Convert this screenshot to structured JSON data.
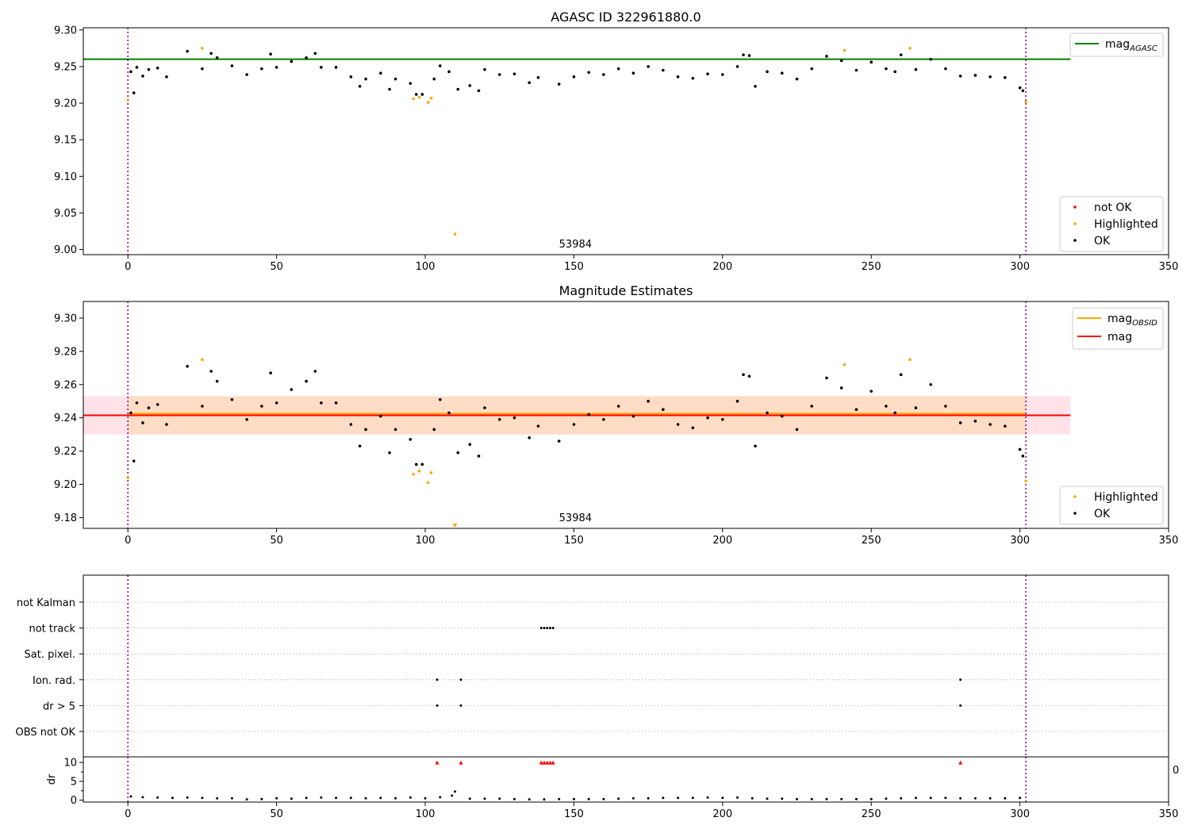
{
  "chart_data": [
    {
      "type": "scatter",
      "title": "AGASC ID 322961880.0",
      "xlim": [
        -15,
        350
      ],
      "ylim": [
        8.993,
        9.303
      ],
      "xticks": [
        0,
        50,
        100,
        150,
        200,
        250,
        300,
        350
      ],
      "yticks": [
        9.0,
        9.05,
        9.1,
        9.15,
        9.2,
        9.25,
        9.3
      ],
      "ytick_labels": [
        "9.00",
        "9.05",
        "9.10",
        "9.15",
        "9.20",
        "9.25",
        "9.30"
      ],
      "annotation": "53984",
      "vlines_x": [
        0,
        302
      ],
      "hline": {
        "name": "mag",
        "sub": "AGASC",
        "y": 9.26,
        "x_range": [
          -15,
          317
        ],
        "color": "#008000"
      },
      "legend_lines": [
        {
          "name": "mag",
          "sub": "AGASC",
          "color": "#008000"
        }
      ],
      "legend_points": [
        {
          "name": "not OK",
          "color": "#ff0000"
        },
        {
          "name": "Highlighted",
          "color": "#ffa500"
        },
        {
          "name": "OK",
          "color": "#000000"
        }
      ],
      "series": [
        {
          "name": "Highlighted",
          "color": "#ffa500",
          "x": [
            0,
            25,
            96,
            98,
            101,
            102,
            110,
            241,
            263,
            302
          ],
          "y": [
            9.204,
            9.275,
            9.206,
            9.208,
            9.201,
            9.207,
            9.021,
            9.272,
            9.275,
            9.202
          ]
        },
        {
          "name": "OK",
          "color": "#000000",
          "x": [
            1,
            2,
            3,
            5,
            7,
            10,
            13,
            20,
            25,
            28,
            30,
            35,
            40,
            45,
            48,
            50,
            55,
            60,
            63,
            65,
            70,
            75,
            78,
            80,
            85,
            88,
            90,
            95,
            97,
            99,
            103,
            105,
            108,
            111,
            115,
            118,
            120,
            125,
            130,
            135,
            138,
            145,
            150,
            155,
            160,
            165,
            170,
            175,
            180,
            185,
            190,
            195,
            200,
            205,
            207,
            209,
            211,
            215,
            220,
            225,
            230,
            235,
            240,
            245,
            250,
            255,
            258,
            260,
            265,
            270,
            275,
            280,
            285,
            290,
            295,
            300,
            301
          ],
          "y": [
            9.243,
            9.214,
            9.249,
            9.237,
            9.246,
            9.248,
            9.236,
            9.271,
            9.247,
            9.268,
            9.262,
            9.251,
            9.239,
            9.247,
            9.267,
            9.249,
            9.257,
            9.262,
            9.268,
            9.249,
            9.249,
            9.236,
            9.223,
            9.233,
            9.241,
            9.219,
            9.233,
            9.227,
            9.212,
            9.212,
            9.233,
            9.251,
            9.243,
            9.219,
            9.224,
            9.217,
            9.246,
            9.239,
            9.24,
            9.228,
            9.235,
            9.226,
            9.236,
            9.242,
            9.239,
            9.247,
            9.241,
            9.25,
            9.245,
            9.236,
            9.234,
            9.24,
            9.239,
            9.25,
            9.266,
            9.265,
            9.223,
            9.243,
            9.241,
            9.233,
            9.247,
            9.264,
            9.258,
            9.245,
            9.256,
            9.247,
            9.243,
            9.266,
            9.246,
            9.26,
            9.247,
            9.237,
            9.238,
            9.236,
            9.235,
            9.221,
            9.217
          ]
        }
      ]
    },
    {
      "type": "scatter",
      "title": "Magnitude Estimates",
      "xlim": [
        -15,
        350
      ],
      "ylim": [
        9.1735,
        9.31
      ],
      "xticks": [
        0,
        50,
        100,
        150,
        200,
        250,
        300,
        350
      ],
      "yticks": [
        9.18,
        9.2,
        9.22,
        9.24,
        9.26,
        9.28,
        9.3
      ],
      "ytick_labels": [
        "9.18",
        "9.20",
        "9.22",
        "9.24",
        "9.26",
        "9.28",
        "9.30"
      ],
      "annotation": "53984",
      "vlines_x": [
        0,
        302
      ],
      "bands": [
        {
          "y0": 9.23,
          "y1": 9.253,
          "x_range": [
            -15,
            317
          ],
          "color": "#ffc0cb"
        },
        {
          "y0": 9.23,
          "y1": 9.253,
          "x_range": [
            0,
            302
          ],
          "color": "#ffdab9"
        }
      ],
      "hlines": [
        {
          "name": "mag",
          "sub": "OBSID",
          "y": 9.2425,
          "x_range": [
            0,
            302
          ],
          "color": "#ffa500"
        },
        {
          "name": "mag",
          "y": 9.2415,
          "x_range": [
            -15,
            317
          ],
          "color": "#ff0000"
        }
      ],
      "legend_lines": [
        {
          "name": "mag",
          "sub": "OBSID",
          "color": "#ffa500"
        },
        {
          "name": "mag",
          "color": "#ff0000"
        }
      ],
      "legend_points": [
        {
          "name": "Highlighted",
          "color": "#ffa500"
        },
        {
          "name": "OK",
          "color": "#000000"
        }
      ],
      "clipped_markers": [
        {
          "x": 110,
          "color": "#ffa500"
        }
      ],
      "series": [
        {
          "name": "Highlighted",
          "color": "#ffa500",
          "x": [
            0,
            25,
            96,
            98,
            101,
            102,
            241,
            263,
            302
          ],
          "y": [
            9.204,
            9.275,
            9.206,
            9.208,
            9.201,
            9.207,
            9.272,
            9.275,
            9.202
          ]
        },
        {
          "name": "OK",
          "color": "#000000",
          "x": [
            1,
            2,
            3,
            5,
            7,
            10,
            13,
            20,
            25,
            28,
            30,
            35,
            40,
            45,
            48,
            50,
            55,
            60,
            63,
            65,
            70,
            75,
            78,
            80,
            85,
            88,
            90,
            95,
            97,
            99,
            103,
            105,
            108,
            111,
            115,
            118,
            120,
            125,
            130,
            135,
            138,
            145,
            150,
            155,
            160,
            165,
            170,
            175,
            180,
            185,
            190,
            195,
            200,
            205,
            207,
            209,
            211,
            215,
            220,
            225,
            230,
            235,
            240,
            245,
            250,
            255,
            258,
            260,
            265,
            270,
            275,
            280,
            285,
            290,
            295,
            300,
            301
          ],
          "y": [
            9.243,
            9.214,
            9.249,
            9.237,
            9.246,
            9.248,
            9.236,
            9.271,
            9.247,
            9.268,
            9.262,
            9.251,
            9.239,
            9.247,
            9.267,
            9.249,
            9.257,
            9.262,
            9.268,
            9.249,
            9.249,
            9.236,
            9.223,
            9.233,
            9.241,
            9.219,
            9.233,
            9.227,
            9.212,
            9.212,
            9.233,
            9.251,
            9.243,
            9.219,
            9.224,
            9.217,
            9.246,
            9.239,
            9.24,
            9.228,
            9.235,
            9.226,
            9.236,
            9.242,
            9.239,
            9.247,
            9.241,
            9.25,
            9.245,
            9.236,
            9.234,
            9.24,
            9.239,
            9.25,
            9.266,
            9.265,
            9.223,
            9.243,
            9.241,
            9.233,
            9.247,
            9.264,
            9.258,
            9.245,
            9.256,
            9.247,
            9.243,
            9.266,
            9.246,
            9.26,
            9.247,
            9.237,
            9.238,
            9.236,
            9.235,
            9.221,
            9.217
          ]
        }
      ]
    },
    {
      "type": "scatter",
      "title": "",
      "xlim": [
        -15,
        350
      ],
      "xticks": [
        0,
        50,
        100,
        150,
        200,
        250,
        300,
        350
      ],
      "vlines_x": [
        0,
        302
      ],
      "flag_rows": [
        "OBS not OK",
        "dr > 5",
        "Ion. rad.",
        "Sat. pixel.",
        "not track",
        "not Kalman"
      ],
      "flags": [
        {
          "row": "not track",
          "x": [
            139,
            140,
            141,
            142,
            143
          ]
        },
        {
          "row": "Ion. rad.",
          "x": [
            104,
            112,
            280
          ]
        },
        {
          "row": "dr > 5",
          "x": [
            104,
            112,
            280
          ]
        }
      ]
    },
    {
      "type": "scatter",
      "title": "",
      "xlim": [
        -15,
        350
      ],
      "ylim": [
        -0.5,
        11.5
      ],
      "xticks": [
        0,
        50,
        100,
        150,
        200,
        250,
        300,
        350
      ],
      "yticks": [
        0,
        5,
        10
      ],
      "ytick_labels": [
        "0",
        "5",
        "10"
      ],
      "ylabel": "dr",
      "vlines_x": [
        0,
        302
      ],
      "right_label": "0",
      "series": [
        {
          "name": "dr",
          "color": "#000000",
          "x": [
            1,
            5,
            10,
            15,
            20,
            25,
            30,
            35,
            40,
            45,
            50,
            55,
            60,
            65,
            70,
            75,
            80,
            85,
            90,
            95,
            100,
            105,
            109,
            110,
            115,
            120,
            125,
            130,
            135,
            140,
            145,
            150,
            155,
            160,
            165,
            170,
            175,
            180,
            185,
            190,
            195,
            200,
            205,
            210,
            215,
            220,
            225,
            230,
            235,
            240,
            245,
            250,
            255,
            260,
            265,
            270,
            275,
            280,
            285,
            290,
            295,
            300
          ],
          "y": [
            1.0,
            0.8,
            0.7,
            0.6,
            0.7,
            0.6,
            0.5,
            0.5,
            0.2,
            0.3,
            0.5,
            0.4,
            0.6,
            0.7,
            0.6,
            0.6,
            0.5,
            0.6,
            0.5,
            0.7,
            0.5,
            0.8,
            1.2,
            2.3,
            0.4,
            0.4,
            0.4,
            0.3,
            0.2,
            0.2,
            0.3,
            0.3,
            0.3,
            0.3,
            0.4,
            0.5,
            0.5,
            0.6,
            0.6,
            0.6,
            0.7,
            0.6,
            0.7,
            0.5,
            0.4,
            0.4,
            0.3,
            0.3,
            0.3,
            0.3,
            0.3,
            0.3,
            0.4,
            0.5,
            0.6,
            0.6,
            0.6,
            0.5,
            0.5,
            0.5,
            0.5,
            0.6
          ]
        },
        {
          "name": "clipped",
          "color": "#ff0000",
          "x": [
            104,
            112,
            139,
            140,
            141,
            142,
            143,
            280
          ],
          "y": [
            10,
            10,
            10,
            10,
            10,
            10,
            10,
            10
          ]
        }
      ]
    }
  ]
}
